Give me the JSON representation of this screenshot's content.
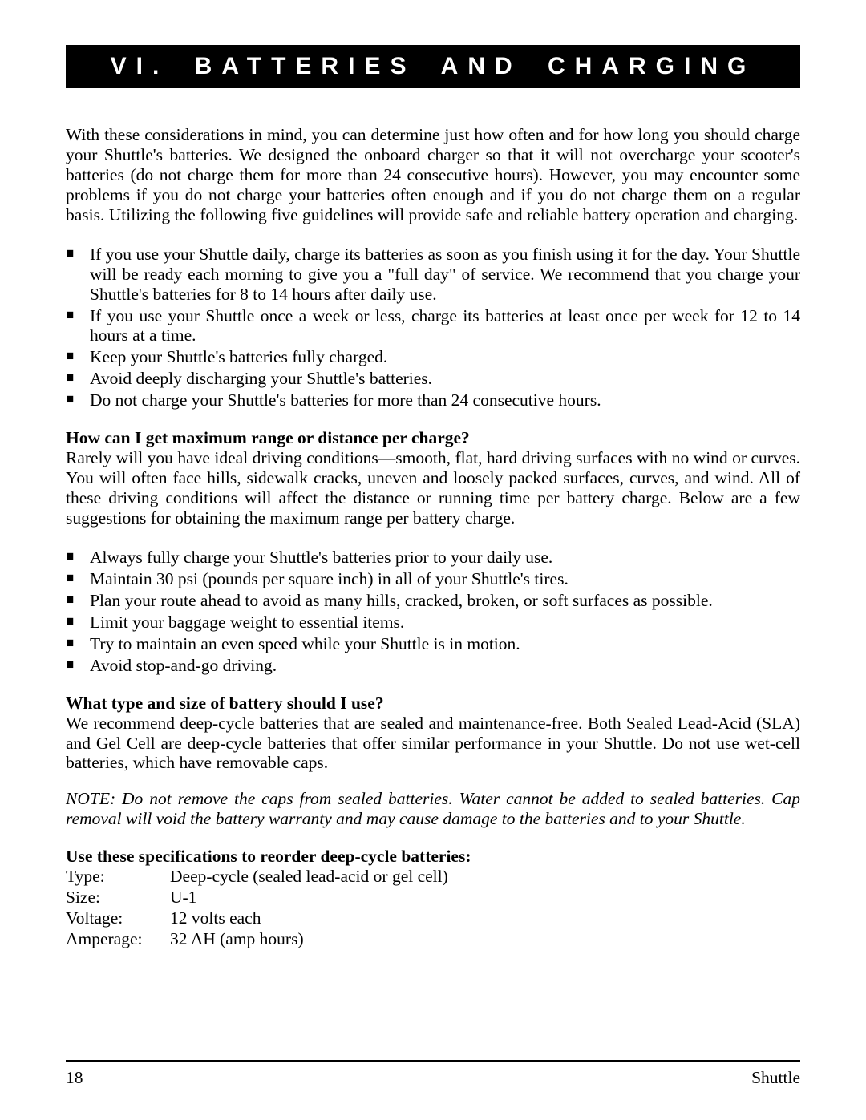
{
  "banner": {
    "text": "VI. BATTERIES AND CHARGING"
  },
  "intro": "With these considerations in mind, you can determine just how often and for how long you should charge your Shuttle's batteries. We designed the onboard charger so that it will not overcharge your scooter's batteries (do not charge them for more than 24 consecutive hours). However, you may encounter some problems if you do not charge your batteries often enough and if you do not charge them on a regular basis. Utilizing the following five guidelines will provide safe and reliable battery operation and charging.",
  "guidelines": [
    "If you use your Shuttle daily, charge its batteries as soon as you finish using it for the day. Your Shuttle will be ready each morning to give you a \"full day\" of service. We recommend that you charge your Shuttle's batteries for 8 to 14 hours after daily use.",
    "If you use your Shuttle once a week or less, charge its batteries at least once per week for 12 to 14 hours at a time.",
    "Keep your Shuttle's batteries fully charged.",
    "Avoid deeply discharging your Shuttle's batteries.",
    "Do not charge your Shuttle's batteries for more than 24 consecutive hours."
  ],
  "q1": {
    "heading": "How can I get maximum range or distance per charge?",
    "body": "Rarely will you have ideal driving conditions—smooth, flat, hard driving surfaces with no wind or curves. You will often face hills, sidewalk cracks, uneven and loosely packed surfaces, curves, and wind. All of these driving conditions will affect the distance or running time per battery charge. Below are a few suggestions for obtaining the maximum range per battery charge.",
    "bullets": [
      "Always fully charge your Shuttle's batteries prior to your daily use.",
      "Maintain 30 psi (pounds per square inch) in all of your Shuttle's tires.",
      "Plan your route ahead to avoid as many hills, cracked, broken, or soft surfaces as possible.",
      "Limit your baggage weight to essential items.",
      "Try to maintain an even speed while your Shuttle is in motion.",
      "Avoid stop-and-go driving."
    ]
  },
  "q2": {
    "heading": "What type and size of battery should I use?",
    "body": "We recommend deep-cycle batteries that are sealed and maintenance-free. Both Sealed Lead-Acid (SLA) and Gel Cell are deep-cycle batteries that offer similar performance in your Shuttle.  Do not use wet-cell batteries, which have removable caps."
  },
  "note": "NOTE: Do not remove the caps from sealed batteries. Water cannot be added to sealed batteries. Cap removal will void the battery warranty and may cause damage to the batteries and to your Shuttle.",
  "specs": {
    "heading": "Use these specifications to reorder deep-cycle batteries:",
    "rows": [
      {
        "label": "Type:",
        "value": "Deep-cycle (sealed lead-acid or gel cell)"
      },
      {
        "label": "Size:",
        "value": "U-1"
      },
      {
        "label": "Voltage:",
        "value": "12 volts each"
      },
      {
        "label": "Amperage:",
        "value": "32 AH (amp hours)"
      }
    ]
  },
  "footer": {
    "page": "18",
    "doc": "Shuttle"
  }
}
